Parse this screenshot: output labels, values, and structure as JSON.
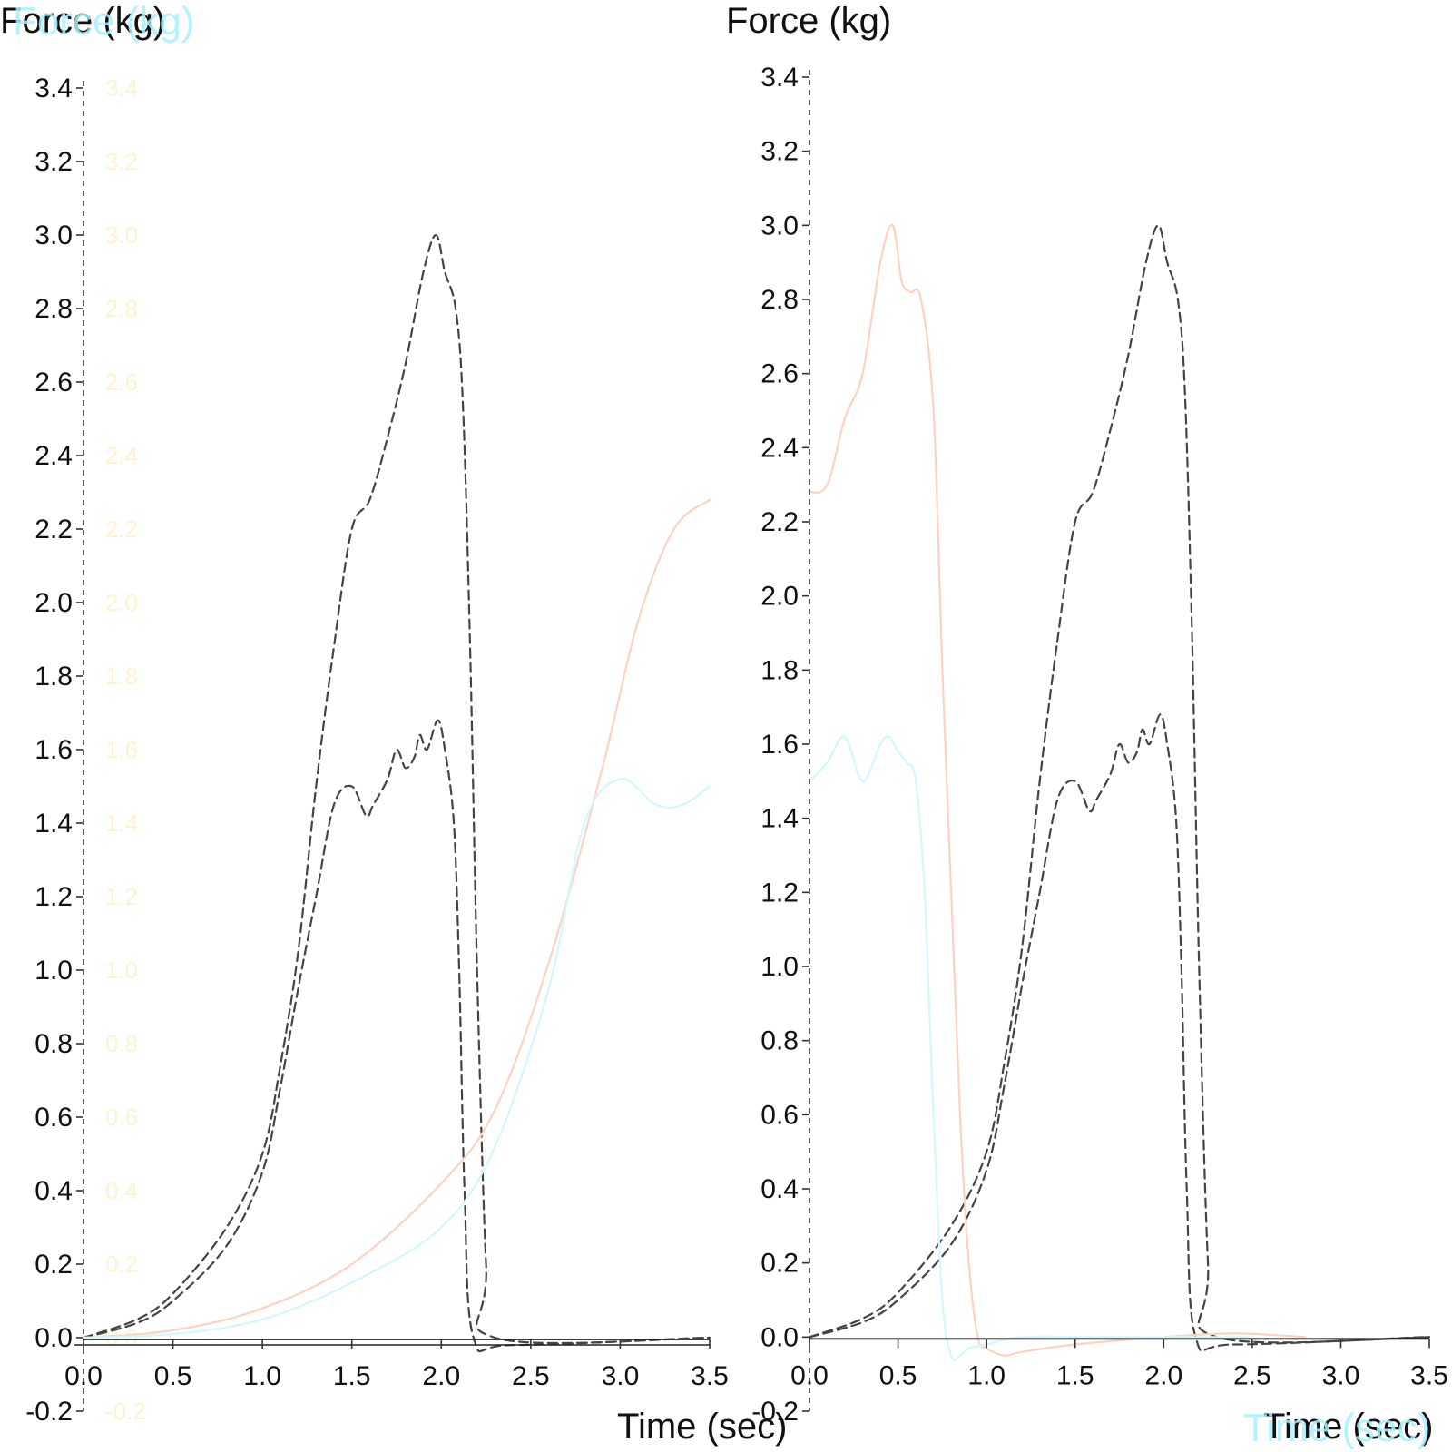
{
  "chart_data": [
    {
      "type": "line",
      "title": "",
      "xlabel": "Time (sec)",
      "ylabel": "Force (kg)",
      "ylabel_overlay": "Force (kg)",
      "xlim": [
        0.0,
        3.5
      ],
      "ylim": [
        -0.2,
        3.4
      ],
      "x_ticks": [
        "0.0",
        "0.5",
        "1.0",
        "1.5",
        "2.0",
        "2.5",
        "3.0",
        "3.5"
      ],
      "y_ticks": [
        "-0.2",
        "0.0",
        "0.2",
        "0.4",
        "0.6",
        "0.8",
        "1.0",
        "1.2",
        "1.4",
        "1.6",
        "1.8",
        "2.0",
        "2.2",
        "2.4",
        "2.6",
        "2.8",
        "3.0",
        "3.2",
        "3.4"
      ],
      "faint_ticks": [
        "-0.2",
        "0.0",
        "0.2",
        "0.4",
        "0.6",
        "0.8",
        "1.0",
        "1.2",
        "1.4",
        "1.6",
        "1.8",
        "2.0",
        "2.2",
        "2.4",
        "2.6",
        "2.8",
        "3.0",
        "3.2",
        "3.4"
      ],
      "grid": false,
      "series": [
        {
          "style": "dashed",
          "color": "#444444",
          "x": [
            0.0,
            0.3,
            0.5,
            0.8,
            1.0,
            1.1,
            1.2,
            1.3,
            1.4,
            1.5,
            1.6,
            1.7,
            1.8,
            1.9,
            1.97,
            2.02,
            2.08,
            2.12,
            2.16,
            2.2,
            2.25,
            2.3,
            3.5
          ],
          "y": [
            0.0,
            0.05,
            0.12,
            0.3,
            0.5,
            0.74,
            1.05,
            1.5,
            1.88,
            2.2,
            2.28,
            2.45,
            2.65,
            2.9,
            3.0,
            2.9,
            2.8,
            2.55,
            1.9,
            1.0,
            0.2,
            0.0,
            0.0
          ]
        },
        {
          "style": "dashed",
          "color": "#444444",
          "x": [
            0.0,
            0.3,
            0.5,
            0.8,
            1.0,
            1.1,
            1.2,
            1.3,
            1.4,
            1.5,
            1.58,
            1.62,
            1.7,
            1.75,
            1.8,
            1.85,
            1.88,
            1.92,
            1.98,
            2.02,
            2.07,
            2.1,
            2.13,
            2.18,
            2.4,
            3.5
          ],
          "y": [
            0.0,
            0.04,
            0.1,
            0.25,
            0.45,
            0.68,
            0.95,
            1.2,
            1.45,
            1.5,
            1.42,
            1.45,
            1.52,
            1.6,
            1.55,
            1.58,
            1.64,
            1.6,
            1.68,
            1.6,
            1.4,
            1.0,
            0.4,
            0.0,
            -0.02,
            0.0
          ]
        },
        {
          "style": "solid",
          "color": "#ffd2c0",
          "x": [
            0.0,
            0.5,
            1.0,
            1.5,
            2.0,
            2.3,
            2.6,
            2.9,
            3.1,
            3.3,
            3.5
          ],
          "y": [
            0.0,
            0.02,
            0.08,
            0.2,
            0.42,
            0.62,
            1.02,
            1.55,
            1.95,
            2.2,
            2.28
          ]
        },
        {
          "style": "solid",
          "color": "#d2f8ff",
          "x": [
            0.0,
            0.5,
            1.0,
            1.5,
            2.0,
            2.3,
            2.6,
            2.8,
            3.0,
            3.2,
            3.35,
            3.5
          ],
          "y": [
            0.0,
            0.01,
            0.05,
            0.15,
            0.3,
            0.52,
            0.95,
            1.4,
            1.52,
            1.45,
            1.45,
            1.5
          ]
        }
      ]
    },
    {
      "type": "line",
      "title": "",
      "xlabel": "Time (sec)",
      "xlabel_overlay": "Time (sec)",
      "ylabel": "Force (kg)",
      "xlim": [
        0.0,
        3.5
      ],
      "ylim": [
        -0.2,
        3.4
      ],
      "x_ticks": [
        "0.0",
        "0.5",
        "1.0",
        "1.5",
        "2.0",
        "2.5",
        "3.0",
        "3.5"
      ],
      "y_ticks": [
        "-0.2",
        "0.0",
        "0.2",
        "0.4",
        "0.6",
        "0.8",
        "1.0",
        "1.2",
        "1.4",
        "1.6",
        "1.8",
        "2.0",
        "2.2",
        "2.4",
        "2.6",
        "2.8",
        "3.0",
        "3.2",
        "3.4"
      ],
      "grid": false,
      "series": [
        {
          "style": "dashed",
          "color": "#444444",
          "x": [
            0.0,
            0.3,
            0.5,
            0.8,
            1.0,
            1.1,
            1.2,
            1.3,
            1.4,
            1.5,
            1.6,
            1.7,
            1.8,
            1.9,
            1.97,
            2.02,
            2.08,
            2.12,
            2.16,
            2.2,
            2.25,
            2.3,
            3.5
          ],
          "y": [
            0.0,
            0.05,
            0.12,
            0.3,
            0.5,
            0.74,
            1.05,
            1.5,
            1.88,
            2.2,
            2.28,
            2.45,
            2.65,
            2.9,
            3.0,
            2.9,
            2.8,
            2.55,
            1.9,
            1.0,
            0.2,
            0.0,
            0.0
          ]
        },
        {
          "style": "dashed",
          "color": "#444444",
          "x": [
            0.0,
            0.3,
            0.5,
            0.8,
            1.0,
            1.1,
            1.2,
            1.3,
            1.4,
            1.5,
            1.58,
            1.62,
            1.7,
            1.75,
            1.8,
            1.85,
            1.88,
            1.92,
            1.98,
            2.02,
            2.07,
            2.1,
            2.13,
            2.18,
            2.4,
            3.5
          ],
          "y": [
            0.0,
            0.04,
            0.1,
            0.25,
            0.45,
            0.68,
            0.95,
            1.2,
            1.45,
            1.5,
            1.42,
            1.45,
            1.52,
            1.6,
            1.55,
            1.58,
            1.64,
            1.6,
            1.68,
            1.6,
            1.4,
            1.0,
            0.4,
            0.0,
            -0.02,
            0.0
          ]
        },
        {
          "style": "solid",
          "color": "#ffd2c0",
          "x": [
            0.0,
            0.1,
            0.2,
            0.3,
            0.4,
            0.47,
            0.52,
            0.57,
            0.63,
            0.7,
            0.75,
            0.8,
            0.85,
            0.9,
            0.95,
            1.0,
            1.1,
            1.2,
            1.5,
            2.0,
            2.4,
            2.8
          ],
          "y": [
            2.28,
            2.3,
            2.48,
            2.6,
            2.9,
            3.0,
            2.85,
            2.82,
            2.8,
            2.5,
            1.8,
            1.2,
            0.6,
            0.2,
            0.0,
            -0.03,
            -0.05,
            -0.04,
            -0.02,
            0.0,
            0.01,
            0.0
          ]
        },
        {
          "style": "solid",
          "color": "#d2f8ff",
          "x": [
            0.0,
            0.1,
            0.2,
            0.3,
            0.4,
            0.45,
            0.5,
            0.55,
            0.6,
            0.65,
            0.7,
            0.75,
            0.8,
            0.85,
            0.9,
            1.0,
            1.2,
            1.6,
            2.0,
            2.5
          ],
          "y": [
            1.5,
            1.55,
            1.62,
            1.5,
            1.6,
            1.62,
            1.58,
            1.55,
            1.5,
            1.2,
            0.6,
            0.1,
            -0.05,
            -0.05,
            -0.03,
            -0.02,
            0.0,
            0.0,
            0.0,
            0.0
          ]
        }
      ]
    }
  ]
}
